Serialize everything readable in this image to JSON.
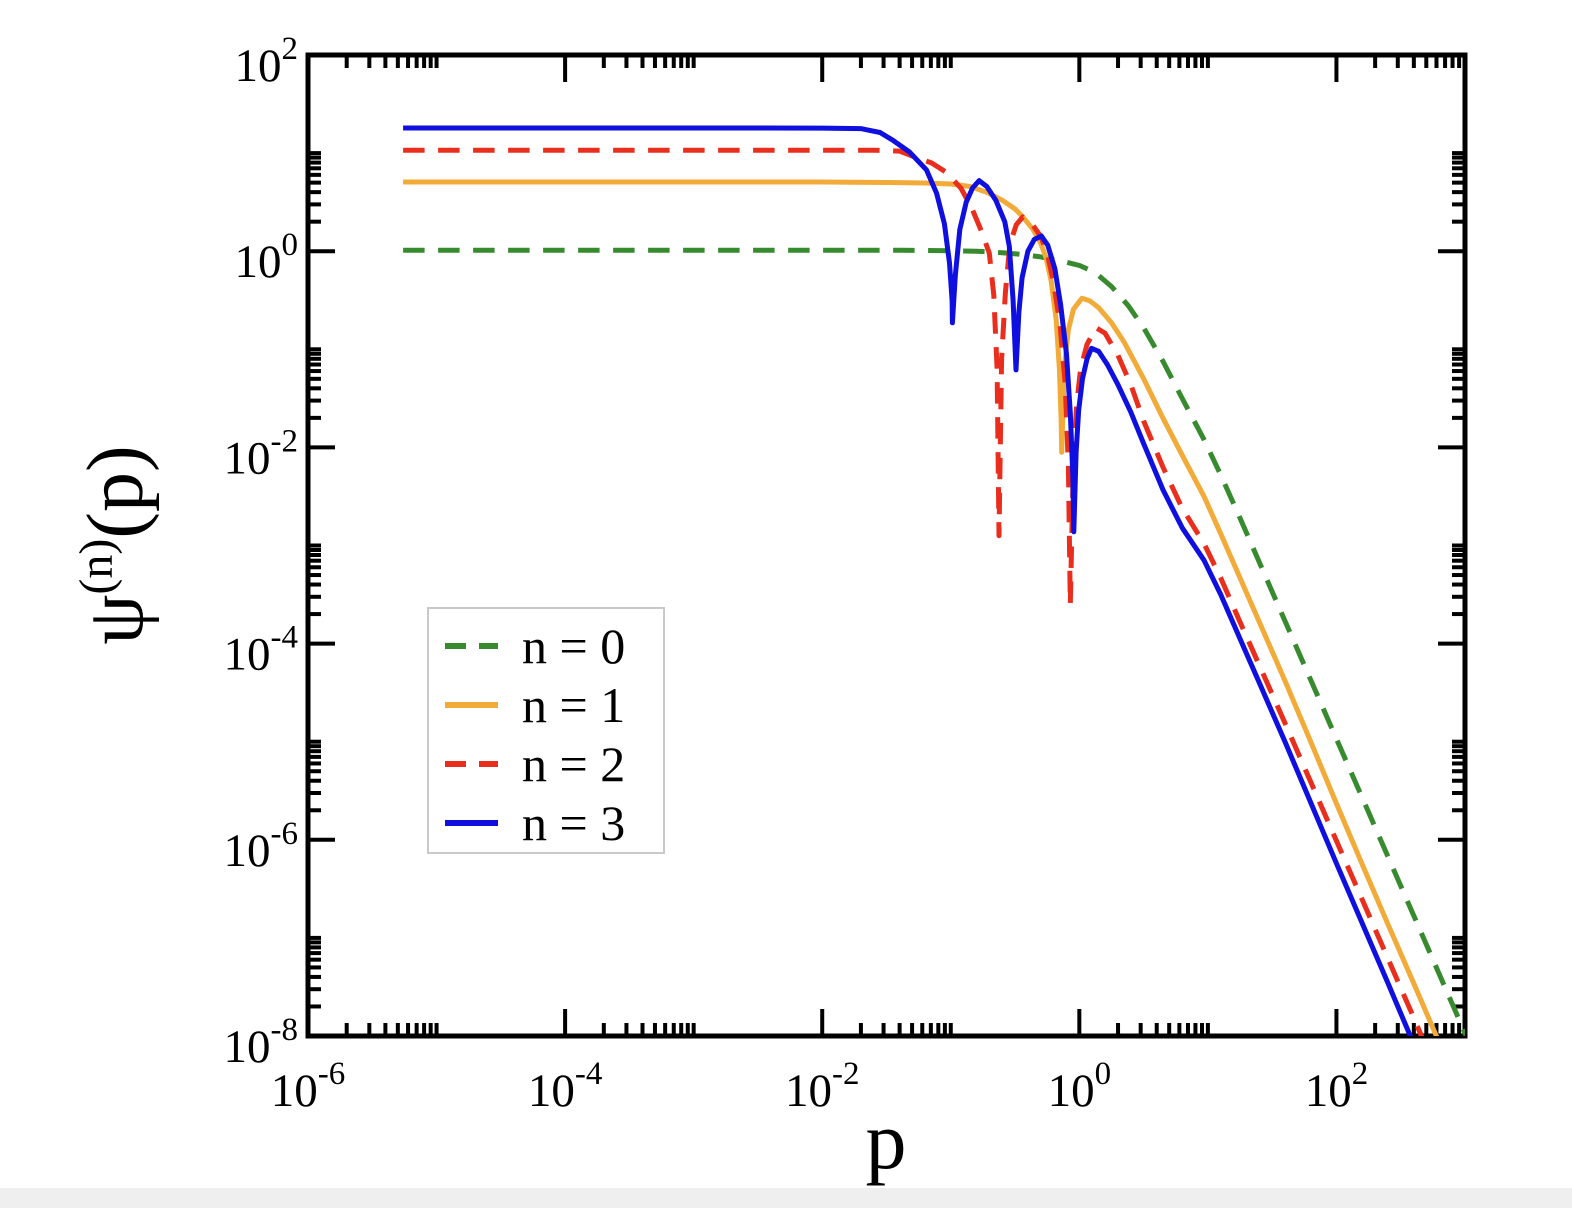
{
  "chart_data": {
    "type": "line",
    "title": "",
    "xlabel": "p",
    "ylabel": "ψ^(n)(p)",
    "ylabel_parts": {
      "base": "ψ",
      "sup": "(n)",
      "arg": "(p)"
    },
    "x_scale": "log",
    "y_scale": "log",
    "xlim": [
      1e-06,
      1000
    ],
    "ylim": [
      1e-08,
      100
    ],
    "grid": false,
    "x_tick_exponents": [
      -6,
      -4,
      -2,
      0,
      2
    ],
    "y_tick_exponents": [
      2,
      0,
      -2,
      -4,
      -6,
      -8
    ],
    "tick_label_base": "10",
    "minor_tick_rule": "minor ticks at 2-9 times each labeled decade plus the next decade boundary; alternate decades empty; ticks mirrored on all four sides, pointing inward",
    "legend": {
      "position": "center-left",
      "border_color": "#c9c9c9",
      "entries": [
        "n = 0",
        "n = 1",
        "n = 2",
        "n = 3"
      ]
    },
    "series": [
      {
        "name": "n = 0",
        "color": "#378b2e",
        "line_style": "dashed",
        "plateau_value": 1.0,
        "zeros_p": [],
        "tail_power_law_slope": -3,
        "points_log10": [
          [
            -5.26,
            0.01
          ],
          [
            -4.0,
            0.01
          ],
          [
            -3.0,
            0.01
          ],
          [
            -2.0,
            0.01
          ],
          [
            -1.4,
            0.01
          ],
          [
            -1.0,
            0.005
          ],
          [
            -0.8,
            0.0
          ],
          [
            -0.6,
            -0.015
          ],
          [
            -0.45,
            -0.033
          ],
          [
            -0.3,
            -0.058
          ],
          [
            -0.15,
            -0.097
          ],
          [
            0,
            -0.145
          ],
          [
            0.12,
            -0.215
          ],
          [
            0.25,
            -0.36
          ],
          [
            0.38,
            -0.555
          ],
          [
            0.5,
            -0.78
          ],
          [
            0.65,
            -1.12
          ],
          [
            0.8,
            -1.5
          ],
          [
            0.97,
            -1.92
          ],
          [
            1.1,
            -2.28
          ],
          [
            1.25,
            -2.72
          ],
          [
            1.4,
            -3.17
          ],
          [
            1.6,
            -3.77
          ],
          [
            1.8,
            -4.37
          ],
          [
            2.0,
            -4.97
          ],
          [
            2.2,
            -5.57
          ],
          [
            2.4,
            -6.17
          ],
          [
            2.6,
            -6.77
          ],
          [
            2.8,
            -7.37
          ],
          [
            3.0,
            -7.97
          ],
          [
            3.06,
            -8.15
          ]
        ]
      },
      {
        "name": "n = 1",
        "color": "#f2ab38",
        "line_style": "solid",
        "plateau_value": 5.1,
        "zeros_p": [
          0.73
        ],
        "tail_power_law_slope": -3,
        "points_log10": [
          [
            -5.26,
            0.705
          ],
          [
            -4.0,
            0.705
          ],
          [
            -3.0,
            0.705
          ],
          [
            -2.0,
            0.705
          ],
          [
            -1.5,
            0.7
          ],
          [
            -1.2,
            0.695
          ],
          [
            -1.0,
            0.685
          ],
          [
            -0.85,
            0.66
          ],
          [
            -0.72,
            0.6
          ],
          [
            -0.6,
            0.52
          ],
          [
            -0.5,
            0.43
          ],
          [
            -0.44,
            0.35
          ],
          [
            -0.36,
            0.22
          ],
          [
            -0.3,
            0.08
          ],
          [
            -0.26,
            -0.06
          ],
          [
            -0.22,
            -0.3
          ],
          [
            -0.18,
            -0.7
          ],
          [
            -0.155,
            -1.2
          ],
          [
            -0.142,
            -1.7
          ],
          [
            -0.137,
            -2.05
          ],
          [
            -0.125,
            -1.5
          ],
          [
            -0.11,
            -1.1
          ],
          [
            -0.085,
            -0.8
          ],
          [
            -0.045,
            -0.59
          ],
          [
            0.02,
            -0.48
          ],
          [
            0.08,
            -0.505
          ],
          [
            0.15,
            -0.575
          ],
          [
            0.25,
            -0.73
          ],
          [
            0.35,
            -0.93
          ],
          [
            0.5,
            -1.3
          ],
          [
            0.65,
            -1.7
          ],
          [
            0.8,
            -2.08
          ],
          [
            0.97,
            -2.5
          ],
          [
            1.1,
            -2.88
          ],
          [
            1.25,
            -3.33
          ],
          [
            1.4,
            -3.78
          ],
          [
            1.6,
            -4.38
          ],
          [
            1.8,
            -5.0
          ],
          [
            2.0,
            -5.63
          ],
          [
            2.2,
            -6.25
          ],
          [
            2.4,
            -6.86
          ],
          [
            2.6,
            -7.46
          ],
          [
            2.8,
            -8.07
          ]
        ]
      },
      {
        "name": "n = 2",
        "color": "#ea2e1d",
        "line_style": "dashed",
        "plateau_value": 10.8,
        "zeros_p": [
          0.24,
          0.85
        ],
        "tail_power_law_slope": -3,
        "points_log10": [
          [
            -5.26,
            1.03
          ],
          [
            -4.0,
            1.03
          ],
          [
            -3.0,
            1.03
          ],
          [
            -2.0,
            1.03
          ],
          [
            -1.6,
            1.03
          ],
          [
            -1.4,
            1.02
          ],
          [
            -1.28,
            0.96
          ],
          [
            -1.15,
            0.9
          ],
          [
            -1.03,
            0.8
          ],
          [
            -0.92,
            0.64
          ],
          [
            -0.83,
            0.42
          ],
          [
            -0.76,
            0.2
          ],
          [
            -0.7,
            -0.02
          ],
          [
            -0.665,
            -0.45
          ],
          [
            -0.64,
            -1.2
          ],
          [
            -0.625,
            -2.9
          ],
          [
            -0.605,
            -1.1
          ],
          [
            -0.575,
            -0.42
          ],
          [
            -0.54,
            0.07
          ],
          [
            -0.49,
            0.27
          ],
          [
            -0.44,
            0.35
          ],
          [
            -0.37,
            0.28
          ],
          [
            -0.3,
            0.15
          ],
          [
            -0.25,
            -0.02
          ],
          [
            -0.2,
            -0.32
          ],
          [
            -0.15,
            -0.75
          ],
          [
            -0.11,
            -1.35
          ],
          [
            -0.085,
            -2.2
          ],
          [
            -0.07,
            -3.6
          ],
          [
            -0.045,
            -2.1
          ],
          [
            -0.02,
            -1.55
          ],
          [
            0.01,
            -1.2
          ],
          [
            0.06,
            -0.95
          ],
          [
            0.13,
            -0.78
          ],
          [
            0.2,
            -0.835
          ],
          [
            0.3,
            -1.06
          ],
          [
            0.4,
            -1.36
          ],
          [
            0.5,
            -1.73
          ],
          [
            0.65,
            -2.2
          ],
          [
            0.8,
            -2.62
          ],
          [
            0.97,
            -2.98
          ],
          [
            1.1,
            -3.33
          ],
          [
            1.25,
            -3.78
          ],
          [
            1.4,
            -4.22
          ],
          [
            1.6,
            -4.81
          ],
          [
            1.8,
            -5.41
          ],
          [
            2.0,
            -6.01
          ],
          [
            2.2,
            -6.61
          ],
          [
            2.4,
            -7.21
          ],
          [
            2.6,
            -7.81
          ],
          [
            2.7,
            -8.12
          ]
        ]
      },
      {
        "name": "n = 3",
        "color": "#0f0fe0",
        "line_style": "solid",
        "plateau_value": 18.0,
        "zeros_p": [
          0.103,
          0.32,
          0.9
        ],
        "tail_power_law_slope": -3,
        "points_log10": [
          [
            -5.26,
            1.256
          ],
          [
            -4.0,
            1.256
          ],
          [
            -3.0,
            1.256
          ],
          [
            -2.0,
            1.255
          ],
          [
            -1.7,
            1.25
          ],
          [
            -1.55,
            1.21
          ],
          [
            -1.45,
            1.13
          ],
          [
            -1.32,
            1.01
          ],
          [
            -1.19,
            0.83
          ],
          [
            -1.11,
            0.59
          ],
          [
            -1.05,
            0.28
          ],
          [
            -1.01,
            -0.12
          ],
          [
            -0.99,
            -0.5
          ],
          [
            -0.987,
            -0.73
          ],
          [
            -0.965,
            -0.25
          ],
          [
            -0.93,
            0.22
          ],
          [
            -0.88,
            0.5
          ],
          [
            -0.83,
            0.645
          ],
          [
            -0.78,
            0.72
          ],
          [
            -0.72,
            0.66
          ],
          [
            -0.65,
            0.52
          ],
          [
            -0.58,
            0.3
          ],
          [
            -0.545,
            0.05
          ],
          [
            -0.515,
            -0.5
          ],
          [
            -0.493,
            -1.21
          ],
          [
            -0.47,
            -0.62
          ],
          [
            -0.445,
            -0.27
          ],
          [
            -0.4,
            0.0
          ],
          [
            -0.35,
            0.12
          ],
          [
            -0.295,
            0.155
          ],
          [
            -0.245,
            0.06
          ],
          [
            -0.19,
            -0.18
          ],
          [
            -0.145,
            -0.55
          ],
          [
            -0.1,
            -1.05
          ],
          [
            -0.07,
            -1.65
          ],
          [
            -0.05,
            -2.3
          ],
          [
            -0.043,
            -2.86
          ],
          [
            -0.025,
            -2.05
          ],
          [
            -0.005,
            -1.62
          ],
          [
            0.025,
            -1.3
          ],
          [
            0.06,
            -1.1
          ],
          [
            0.095,
            -0.99
          ],
          [
            0.15,
            -1.02
          ],
          [
            0.22,
            -1.16
          ],
          [
            0.3,
            -1.36
          ],
          [
            0.4,
            -1.64
          ],
          [
            0.5,
            -1.96
          ],
          [
            0.65,
            -2.43
          ],
          [
            0.8,
            -2.82
          ],
          [
            0.97,
            -3.15
          ],
          [
            1.1,
            -3.5
          ],
          [
            1.25,
            -3.95
          ],
          [
            1.4,
            -4.4
          ],
          [
            1.6,
            -5.0
          ],
          [
            1.8,
            -5.62
          ],
          [
            2.0,
            -6.24
          ],
          [
            2.2,
            -6.85
          ],
          [
            2.4,
            -7.46
          ],
          [
            2.6,
            -8.08
          ]
        ]
      }
    ],
    "colors": {
      "axis": "#000000",
      "background": "#ffffff",
      "bottom_strip": "#efefef"
    }
  }
}
